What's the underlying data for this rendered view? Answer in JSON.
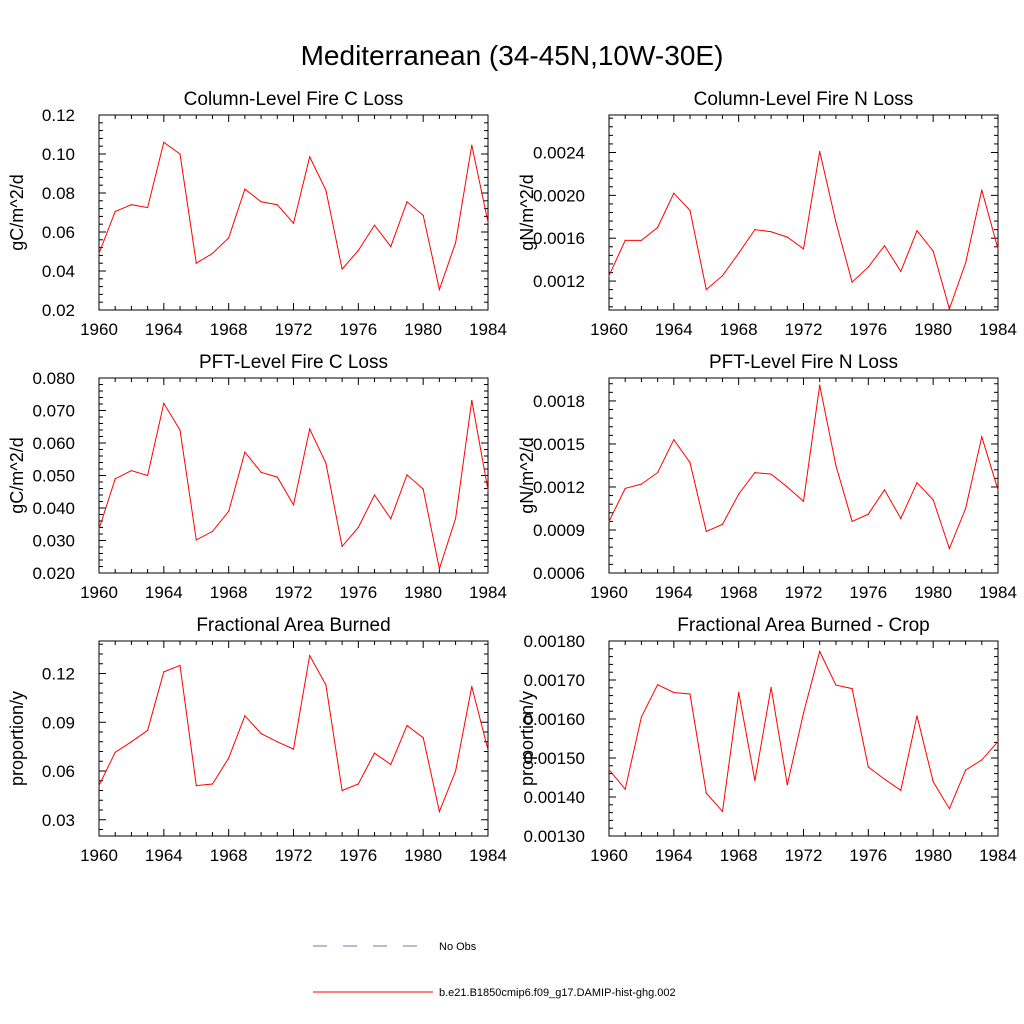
{
  "figure": {
    "title": "Mediterranean (34-45N,10W-30E)"
  },
  "legend": {
    "placement": "bottom-center",
    "entries": [
      {
        "label": "No Obs",
        "color": "#6e74b8",
        "style": "dashed"
      },
      {
        "label": "b.e21.B1850cmip6.f09_g17.DAMIP-hist-ghg.002",
        "color": "#ff0000",
        "style": "solid"
      }
    ]
  },
  "chart_data": [
    {
      "type": "line",
      "title": "Column-Level Fire C Loss",
      "ylabel": "gC/m^2/d",
      "xlim": [
        1960,
        1984
      ],
      "ylim": [
        0.02,
        0.12
      ],
      "xticks": [
        1960,
        1964,
        1968,
        1972,
        1976,
        1980,
        1984
      ],
      "yticks": [
        "0.02",
        "0.04",
        "0.06",
        "0.08",
        "0.10",
        "0.12"
      ],
      "series": [
        {
          "name": "b.e21.B1850cmip6.f09_g17.DAMIP-hist-ghg.002",
          "color": "#ff0000",
          "x": [
            1960,
            1961,
            1962,
            1963,
            1964,
            1965,
            1966,
            1967,
            1968,
            1969,
            1970,
            1971,
            1972,
            1973,
            1974,
            1975,
            1976,
            1977,
            1978,
            1979,
            1980,
            1981,
            1982,
            1983,
            1984
          ],
          "y": [
            0.049,
            0.0705,
            0.074,
            0.0725,
            0.106,
            0.1,
            0.044,
            0.049,
            0.057,
            0.082,
            0.0755,
            0.074,
            0.0645,
            0.0985,
            0.0815,
            0.041,
            0.0505,
            0.0635,
            0.0525,
            0.0755,
            0.0685,
            0.0305,
            0.0545,
            0.1045,
            0.065
          ]
        }
      ]
    },
    {
      "type": "line",
      "title": "Column-Level Fire N Loss",
      "ylabel": "gN/m^2/d",
      "xlim": [
        1960,
        1984
      ],
      "ylim": [
        0.00093,
        0.00275
      ],
      "xticks": [
        1960,
        1964,
        1968,
        1972,
        1976,
        1980,
        1984
      ],
      "yticks": [
        "0.0012",
        "0.0016",
        "0.0020",
        "0.0024"
      ],
      "series": [
        {
          "name": "b.e21.B1850cmip6.f09_g17.DAMIP-hist-ghg.002",
          "color": "#ff0000",
          "x": [
            1960,
            1961,
            1962,
            1963,
            1964,
            1965,
            1966,
            1967,
            1968,
            1969,
            1970,
            1971,
            1972,
            1973,
            1974,
            1975,
            1976,
            1977,
            1978,
            1979,
            1980,
            1981,
            1982,
            1983,
            1984
          ],
          "y": [
            0.00125,
            0.00158,
            0.00158,
            0.0017,
            0.00202,
            0.00186,
            0.00112,
            0.00125,
            0.00146,
            0.00168,
            0.00166,
            0.00161,
            0.0015,
            0.00241,
            0.00175,
            0.00119,
            0.00133,
            0.00153,
            0.00129,
            0.00167,
            0.00148,
            0.00094,
            0.00137,
            0.00205,
            0.0015
          ]
        }
      ]
    },
    {
      "type": "line",
      "title": "PFT-Level Fire C Loss",
      "ylabel": "gC/m^2/d",
      "xlim": [
        1960,
        1984
      ],
      "ylim": [
        0.02,
        0.08
      ],
      "xticks": [
        1960,
        1964,
        1968,
        1972,
        1976,
        1980,
        1984
      ],
      "yticks": [
        "0.020",
        "0.030",
        "0.040",
        "0.050",
        "0.060",
        "0.070",
        "0.080"
      ],
      "series": [
        {
          "name": "b.e21.B1850cmip6.f09_g17.DAMIP-hist-ghg.002",
          "color": "#ff0000",
          "x": [
            1960,
            1961,
            1962,
            1963,
            1964,
            1965,
            1966,
            1967,
            1968,
            1969,
            1970,
            1971,
            1972,
            1973,
            1974,
            1975,
            1976,
            1977,
            1978,
            1979,
            1980,
            1981,
            1982,
            1983,
            1984
          ],
          "y": [
            0.0335,
            0.049,
            0.0515,
            0.05,
            0.0722,
            0.064,
            0.0302,
            0.0328,
            0.039,
            0.0572,
            0.051,
            0.0495,
            0.041,
            0.0643,
            0.0538,
            0.0282,
            0.034,
            0.044,
            0.0367,
            0.0502,
            0.0458,
            0.0213,
            0.0368,
            0.0731,
            0.0455
          ]
        }
      ]
    },
    {
      "type": "line",
      "title": "PFT-Level Fire N Loss",
      "ylabel": "gN/m^2/d",
      "xlim": [
        1960,
        1984
      ],
      "ylim": [
        0.0006,
        0.00196
      ],
      "xticks": [
        1960,
        1964,
        1968,
        1972,
        1976,
        1980,
        1984
      ],
      "yticks": [
        "0.0006",
        "0.0009",
        "0.0012",
        "0.0015",
        "0.0018"
      ],
      "series": [
        {
          "name": "b.e21.B1850cmip6.f09_g17.DAMIP-hist-ghg.002",
          "color": "#ff0000",
          "x": [
            1960,
            1961,
            1962,
            1963,
            1964,
            1965,
            1966,
            1967,
            1968,
            1969,
            1970,
            1971,
            1972,
            1973,
            1974,
            1975,
            1976,
            1977,
            1978,
            1979,
            1980,
            1981,
            1982,
            1983,
            1984
          ],
          "y": [
            0.00096,
            0.00119,
            0.00122,
            0.0013,
            0.00153,
            0.00137,
            0.00089,
            0.00094,
            0.00115,
            0.0013,
            0.00129,
            0.0012,
            0.0011,
            0.00191,
            0.00135,
            0.00096,
            0.00101,
            0.00118,
            0.00098,
            0.00123,
            0.00111,
            0.00077,
            0.00105,
            0.00155,
            0.00118
          ]
        }
      ]
    },
    {
      "type": "line",
      "title": "Fractional Area Burned",
      "ylabel": "proportion/y",
      "xlim": [
        1960,
        1984
      ],
      "ylim": [
        0.02,
        0.14
      ],
      "xticks": [
        1960,
        1964,
        1968,
        1972,
        1976,
        1980,
        1984
      ],
      "yticks": [
        "0.03",
        "0.06",
        "0.09",
        "0.12"
      ],
      "series": [
        {
          "name": "b.e21.B1850cmip6.f09_g17.DAMIP-hist-ghg.002",
          "color": "#ff0000",
          "x": [
            1960,
            1961,
            1962,
            1963,
            1964,
            1965,
            1966,
            1967,
            1968,
            1969,
            1970,
            1971,
            1972,
            1973,
            1974,
            1975,
            1976,
            1977,
            1978,
            1979,
            1980,
            1981,
            1982,
            1983,
            1984
          ],
          "y": [
            0.051,
            0.0715,
            0.078,
            0.085,
            0.121,
            0.125,
            0.051,
            0.052,
            0.068,
            0.094,
            0.083,
            0.078,
            0.0735,
            0.131,
            0.113,
            0.048,
            0.052,
            0.071,
            0.064,
            0.088,
            0.0805,
            0.035,
            0.06,
            0.112,
            0.073
          ]
        }
      ]
    },
    {
      "type": "line",
      "title": "Fractional Area Burned - Crop",
      "ylabel": "proportion/y",
      "xlim": [
        1960,
        1984
      ],
      "ylim": [
        0.0013,
        0.0018
      ],
      "xticks": [
        1960,
        1964,
        1968,
        1972,
        1976,
        1980,
        1984
      ],
      "yticks": [
        "0.00130",
        "0.00140",
        "0.00150",
        "0.00160",
        "0.00170",
        "0.00180"
      ],
      "series": [
        {
          "name": "b.e21.B1850cmip6.f09_g17.DAMIP-hist-ghg.002",
          "color": "#ff0000",
          "x": [
            1960,
            1961,
            1962,
            1963,
            1964,
            1965,
            1966,
            1967,
            1968,
            1969,
            1970,
            1971,
            1972,
            1973,
            1974,
            1975,
            1976,
            1977,
            1978,
            1979,
            1980,
            1981,
            1982,
            1983,
            1984
          ],
          "y": [
            0.00147,
            0.00142,
            0.001605,
            0.001688,
            0.001668,
            0.001664,
            0.00141,
            0.001363,
            0.001668,
            0.001442,
            0.001681,
            0.001431,
            0.001615,
            0.001773,
            0.001687,
            0.001678,
            0.001477,
            0.001446,
            0.001417,
            0.001608,
            0.001439,
            0.00137,
            0.001469,
            0.001495,
            0.001542
          ]
        }
      ]
    }
  ]
}
